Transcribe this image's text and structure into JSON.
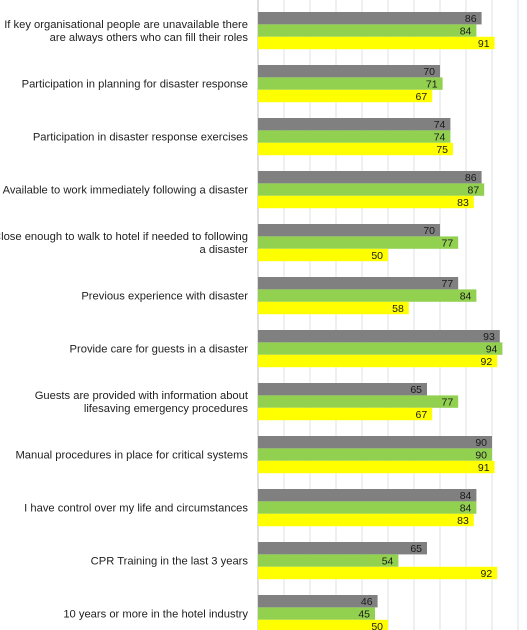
{
  "chart_data": {
    "type": "bar",
    "orientation": "horizontal",
    "categories": [
      "If key organisational people are unavailable there are always others who can fill their roles",
      "Participation in planning for disaster response",
      "Participation in disaster response exercises",
      "Available to work immediately following a disaster",
      "Close enough to walk to hotel if needed to following a disaster",
      "Previous experience with disaster",
      "Provide care for guests in a disaster",
      "Guests are provided with information about lifesaving emergency procedures",
      "Manual procedures in place for critical systems",
      "I have control over my life and circumstances",
      "CPR Training in the last 3 years",
      "10 years or more in the hotel industry"
    ],
    "series": [
      {
        "color": "#808080",
        "values": [
          86,
          70,
          74,
          86,
          70,
          77,
          93,
          65,
          90,
          84,
          65,
          46
        ]
      },
      {
        "color": "#92d050",
        "values": [
          84,
          71,
          74,
          87,
          77,
          84,
          94,
          77,
          90,
          84,
          54,
          45
        ]
      },
      {
        "color": "#ffff00",
        "values": [
          91,
          67,
          75,
          83,
          50,
          58,
          92,
          67,
          91,
          83,
          92,
          50
        ]
      }
    ],
    "xlim": [
      0,
      100
    ],
    "grid": true,
    "data_labels": true
  }
}
